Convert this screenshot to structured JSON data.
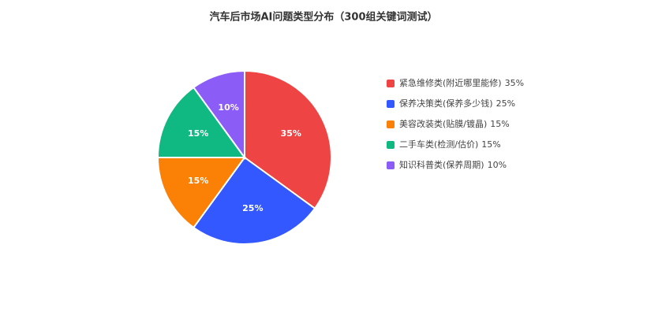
{
  "chart_data": {
    "type": "pie",
    "title": "汽车后市场AI问题类型分布（300组关键词测试）",
    "categories": [
      "紧急维修类(附近哪里能修)",
      "保养决策类(保养多少钱)",
      "美容改装类(贴膜/镀晶)",
      "二手车类(检测/估价)",
      "知识科普类(保养周期)"
    ],
    "values": [
      35,
      25,
      15,
      15,
      10
    ],
    "value_labels": [
      "35%",
      "25%",
      "15%",
      "15%",
      "10%"
    ],
    "colors": [
      "#ef4444",
      "#3358ff",
      "#fb8006",
      "#10b981",
      "#8b5cf6"
    ],
    "legend": "right"
  }
}
